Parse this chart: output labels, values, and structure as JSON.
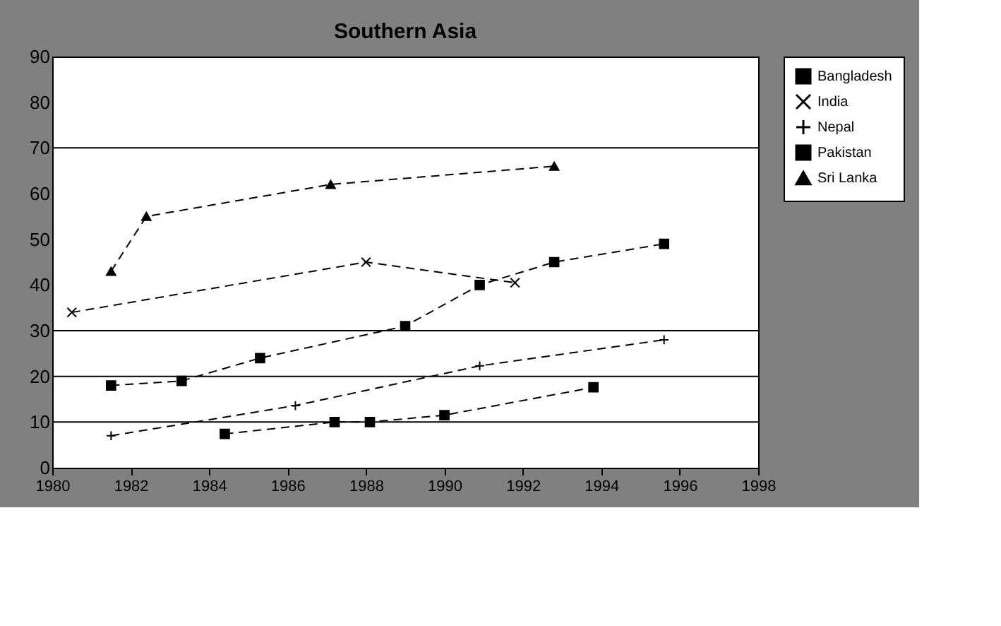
{
  "chart_data": {
    "type": "line",
    "title": "Southern Asia",
    "xlim": [
      1980,
      1998
    ],
    "xticks": [
      1980,
      1982,
      1984,
      1986,
      1988,
      1990,
      1992,
      1994,
      1996,
      1998
    ],
    "ylim": [
      0,
      90
    ],
    "yticks": [
      0,
      10,
      20,
      30,
      40,
      50,
      60,
      70,
      80,
      90
    ],
    "legend": "right",
    "line_style": "dashed",
    "ref_lines": [
      {
        "axis": "y",
        "value": 10,
        "color": "#000000"
      },
      {
        "axis": "y",
        "value": 20,
        "color": "#000000"
      },
      {
        "axis": "y",
        "value": 30,
        "color": "#000000"
      },
      {
        "axis": "y",
        "value": 70,
        "color": "#000000"
      }
    ],
    "series": [
      {
        "name": "Bangladesh",
        "color": "#000000",
        "marker": "square",
        "x": [
          1981.5,
          1983.3,
          1985.3,
          1989,
          1990.9,
          1992.8,
          1995.6
        ],
        "values": [
          18,
          19,
          24,
          31,
          40,
          45,
          49
        ]
      },
      {
        "name": "India",
        "color": "#000000",
        "marker": "cross",
        "x": [
          1980.5,
          1988,
          1991.8
        ],
        "values": [
          34,
          45,
          40.5
        ]
      },
      {
        "name": "Nepal",
        "color": "#000000",
        "marker": "plus",
        "x": [
          1981.5,
          1986.2,
          1990.9,
          1995.6
        ],
        "values": [
          7,
          13.6,
          22.3,
          28
        ]
      },
      {
        "name": "Pakistan",
        "color": "#000000",
        "marker": "square",
        "x": [
          1984.4,
          1987.2,
          1988.1,
          1990,
          1993.8
        ],
        "values": [
          7.4,
          10,
          10,
          11.5,
          17.6
        ]
      },
      {
        "name": "Sri Lanka",
        "color": "#000000",
        "marker": "triangle",
        "x": [
          1981.5,
          1982.4,
          1987.1,
          1992.8
        ],
        "values": [
          43,
          55,
          62,
          66
        ]
      }
    ]
  }
}
